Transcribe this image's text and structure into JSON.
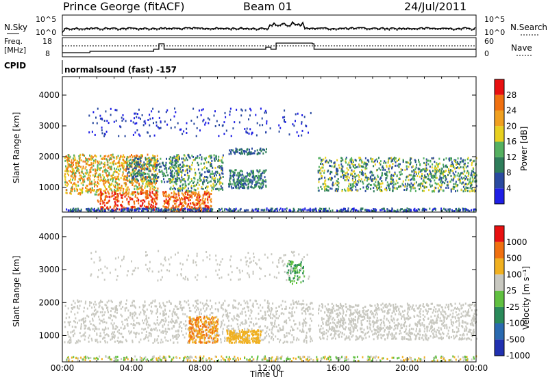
{
  "header": {
    "station": "Prince George (fitACF)",
    "beam": "Beam 01",
    "date": "24/Jul/2011"
  },
  "noise_panel": {
    "left_label": "N.Sky",
    "right_label": "N.Search",
    "left_ticks": [
      "10^5",
      "10^0"
    ],
    "right_ticks": [
      "10^5",
      "10^0"
    ]
  },
  "freq_panel": {
    "left_label_1": "Freq.",
    "left_label_2": "[MHz]",
    "right_label": "Nave",
    "left_ticks": [
      "18",
      "8"
    ],
    "right_ticks": [
      "60",
      "0"
    ]
  },
  "cpid_panel": {
    "label": "CPID",
    "text": "normalsound (fast) -157"
  },
  "chart_data": [
    {
      "type": "heatmap",
      "name": "power",
      "ylabel": "Slant Range [km]",
      "xlabel": "",
      "y_ticks": [
        "1000",
        "2000",
        "3000",
        "4000"
      ],
      "ylim": [
        200,
        4600
      ],
      "colorbar": {
        "label": "Power [dB]",
        "ticks": [
          "4",
          "8",
          "12",
          "16",
          "20",
          "24",
          "28"
        ],
        "colors": [
          "#1f1fe6",
          "#2a4aa0",
          "#2e7d5a",
          "#55b060",
          "#e8d020",
          "#f0a020",
          "#f07010",
          "#e81010"
        ]
      }
    },
    {
      "type": "heatmap",
      "name": "velocity",
      "ylabel": "Slant Range [km]",
      "xlabel": "Time UT",
      "y_ticks": [
        "1000",
        "2000",
        "3000",
        "4000"
      ],
      "ylim": [
        200,
        4600
      ],
      "x_ticks": [
        "00:00",
        "04:00",
        "08:00",
        "12:00",
        "16:00",
        "20:00",
        "00:00"
      ],
      "colorbar": {
        "label": "Velocity [m s⁻¹]",
        "ticks": [
          "1000",
          "500",
          "100",
          "25",
          "-25",
          "-100",
          "-500",
          "-1000"
        ],
        "colors": [
          "#2030b0",
          "#2a6ab0",
          "#2a8a5a",
          "#60c040",
          "#c8c8c0",
          "#f0b020",
          "#f07010",
          "#e81010"
        ]
      }
    }
  ]
}
